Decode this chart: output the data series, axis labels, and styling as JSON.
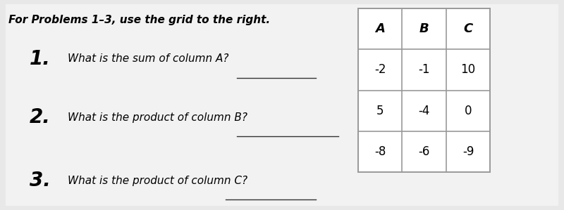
{
  "background_color": "#e8e8e8",
  "panel_color": "#f0f0f0",
  "header_text": "For Problems 1–3, use the grid to the right.",
  "problems": [
    {
      "number": "1.",
      "text": "What is the sum of column A?"
    },
    {
      "number": "2.",
      "text": "What is the product of column B?"
    },
    {
      "number": "3.",
      "text": "What is the product of column C?"
    }
  ],
  "table": {
    "headers": [
      "A",
      "B",
      "C"
    ],
    "rows": [
      [
        "-2",
        "-1",
        "10"
      ],
      [
        "5",
        "-4",
        "0"
      ],
      [
        "-8",
        "-6",
        "-9"
      ]
    ]
  },
  "header_fontsize": 11,
  "number_fontsize": 20,
  "text_fontsize": 11,
  "table_header_fontsize": 13,
  "table_data_fontsize": 12,
  "table_border_color": "#999999",
  "line_color": "#333333"
}
